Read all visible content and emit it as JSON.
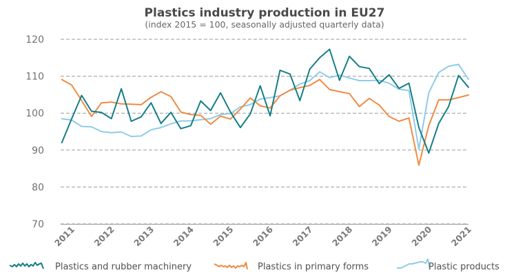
{
  "chart_data": {
    "type": "line",
    "title": "Plastics industry production in EU27",
    "subtitle": "(index 2015 = 100, seasonally adjusted quarterly data)",
    "xlabel": "",
    "ylabel": "",
    "ylim": [
      70,
      120
    ],
    "xlim": [
      2010.97,
      2021.25
    ],
    "yticks": [
      70,
      80,
      90,
      100,
      110,
      120
    ],
    "xticks": [
      "2011",
      "2012",
      "2013",
      "2014",
      "2015",
      "2016",
      "2017",
      "2018",
      "2019",
      "2020",
      "2021"
    ],
    "grid": "horizontal dashed",
    "legend_position": "bottom",
    "x": [
      2011.0,
      2011.25,
      2011.5,
      2011.75,
      2012.0,
      2012.25,
      2012.5,
      2012.75,
      2013.0,
      2013.25,
      2013.5,
      2013.75,
      2014.0,
      2014.25,
      2014.5,
      2014.75,
      2015.0,
      2015.25,
      2015.5,
      2015.75,
      2016.0,
      2016.25,
      2016.5,
      2016.75,
      2017.0,
      2017.25,
      2017.5,
      2017.75,
      2018.0,
      2018.25,
      2018.5,
      2018.75,
      2019.0,
      2019.25,
      2019.5,
      2019.75,
      2020.0,
      2020.25,
      2020.5,
      2020.75,
      2021.0,
      2021.25
    ],
    "series": [
      {
        "name": "Plastics and rubber machinery",
        "color": "#137e86",
        "values": [
          92.0,
          98.5,
          104.8,
          100.5,
          100.2,
          98.5,
          106.6,
          97.8,
          99.0,
          102.8,
          97.2,
          100.2,
          95.8,
          96.6,
          103.3,
          100.7,
          105.5,
          100.3,
          96.1,
          99.8,
          107.4,
          99.3,
          111.6,
          110.6,
          103.4,
          111.9,
          115.0,
          117.3,
          108.9,
          115.4,
          112.6,
          112.1,
          108.0,
          110.4,
          106.7,
          108.1,
          96.1,
          89.2,
          97.2,
          101.8,
          110.2,
          107.0
        ]
      },
      {
        "name": "Plastics in primary forms",
        "color": "#f08a43",
        "values": [
          109.1,
          107.6,
          103.4,
          99.1,
          102.8,
          103.0,
          102.5,
          102.4,
          102.3,
          104.3,
          105.8,
          104.5,
          100.3,
          99.6,
          99.4,
          97.0,
          99.2,
          98.4,
          101.1,
          104.1,
          102.0,
          101.4,
          104.7,
          106.2,
          106.9,
          107.5,
          109.1,
          106.4,
          105.8,
          105.3,
          101.8,
          104.0,
          102.2,
          99.1,
          97.8,
          98.7,
          85.9,
          96.6,
          103.6,
          103.6,
          104.2,
          104.9
        ]
      },
      {
        "name": "Plastic products",
        "color": "#8fcbe6",
        "values": [
          98.5,
          98.1,
          96.4,
          96.3,
          95.0,
          94.7,
          94.9,
          93.7,
          93.8,
          95.5,
          96.1,
          97.1,
          97.9,
          97.9,
          98.2,
          98.5,
          99.6,
          99.9,
          101.7,
          102.3,
          103.8,
          104.2,
          104.7,
          106.2,
          107.9,
          108.8,
          111.2,
          109.6,
          110.3,
          109.5,
          108.8,
          108.8,
          108.9,
          108.1,
          106.5,
          106.1,
          90.2,
          105.5,
          111.0,
          112.7,
          113.2,
          109.2
        ]
      }
    ]
  }
}
